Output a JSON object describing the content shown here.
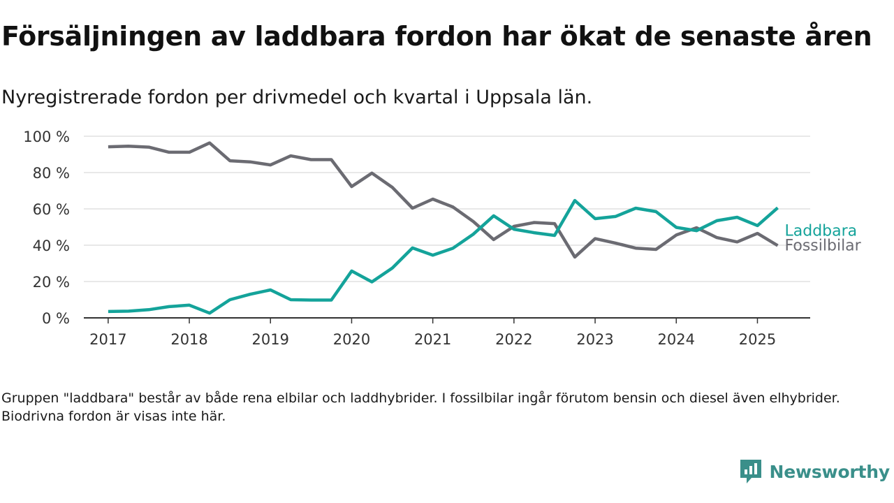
{
  "title": "Försäljningen av laddbara fordon har ökat de senaste åren",
  "subtitle": "Nyregistrerade fordon per drivmedel och kvartal i Uppsala län.",
  "note": "Gruppen \"laddbara\" består av både rena elbilar och laddhybrider. I fossilbilar ingår förutom bensin och diesel även elhybrider. Biodrivna fordon är visas inte här.",
  "brand": {
    "name": "Newsworthy",
    "icon": "newsworthy-logo-icon",
    "color": "#3a8f8a"
  },
  "chart_data": {
    "type": "line",
    "title": "Försäljningen av laddbara fordon har ökat de senaste åren",
    "subtitle": "Nyregistrerade fordon per drivmedel och kvartal i Uppsala län.",
    "xlabel": "",
    "ylabel": "",
    "ylim": [
      0,
      100
    ],
    "xlim": [
      2016.7,
      2025.65
    ],
    "y_ticks": [
      0,
      20,
      40,
      60,
      80,
      100
    ],
    "y_tick_labels": [
      "0 %",
      "20 %",
      "40 %",
      "60 %",
      "80 %",
      "100 %"
    ],
    "x_ticks": [
      2017,
      2018,
      2019,
      2020,
      2021,
      2022,
      2023,
      2024,
      2025
    ],
    "x_tick_labels": [
      "2017",
      "2018",
      "2019",
      "2020",
      "2021",
      "2022",
      "2023",
      "2024",
      "2025"
    ],
    "grid": true,
    "x": [
      2017.0,
      2017.25,
      2017.5,
      2017.75,
      2018.0,
      2018.25,
      2018.5,
      2018.75,
      2019.0,
      2019.25,
      2019.5,
      2019.75,
      2020.0,
      2020.25,
      2020.5,
      2020.75,
      2021.0,
      2021.25,
      2021.5,
      2021.75,
      2022.0,
      2022.25,
      2022.5,
      2022.75,
      2023.0,
      2023.25,
      2023.5,
      2023.75,
      2024.0,
      2024.25,
      2024.5,
      2024.75,
      2025.0,
      2025.25
    ],
    "series": [
      {
        "name": "Laddbara",
        "color": "#14a39a",
        "values": [
          3.5,
          3.7,
          4.5,
          6.2,
          7.0,
          2.6,
          10.0,
          13.0,
          15.4,
          10.0,
          9.8,
          9.8,
          25.8,
          19.8,
          27.4,
          38.5,
          34.5,
          38.4,
          46.1,
          56.2,
          48.8,
          46.9,
          45.4,
          64.6,
          54.6,
          55.8,
          60.4,
          58.5,
          49.8,
          48.0,
          53.5,
          55.4,
          50.8,
          60.6
        ]
      },
      {
        "name": "Fossilbilar",
        "color": "#6b6b72",
        "values": [
          94.2,
          94.5,
          94.0,
          91.2,
          91.2,
          96.3,
          86.5,
          85.9,
          84.2,
          89.2,
          87.1,
          87.1,
          72.3,
          79.7,
          71.9,
          60.4,
          65.4,
          61.0,
          53.0,
          43.1,
          50.4,
          52.5,
          51.9,
          33.5,
          43.6,
          41.2,
          38.4,
          37.7,
          45.6,
          49.6,
          44.2,
          41.8,
          46.5,
          39.8
        ]
      }
    ]
  }
}
